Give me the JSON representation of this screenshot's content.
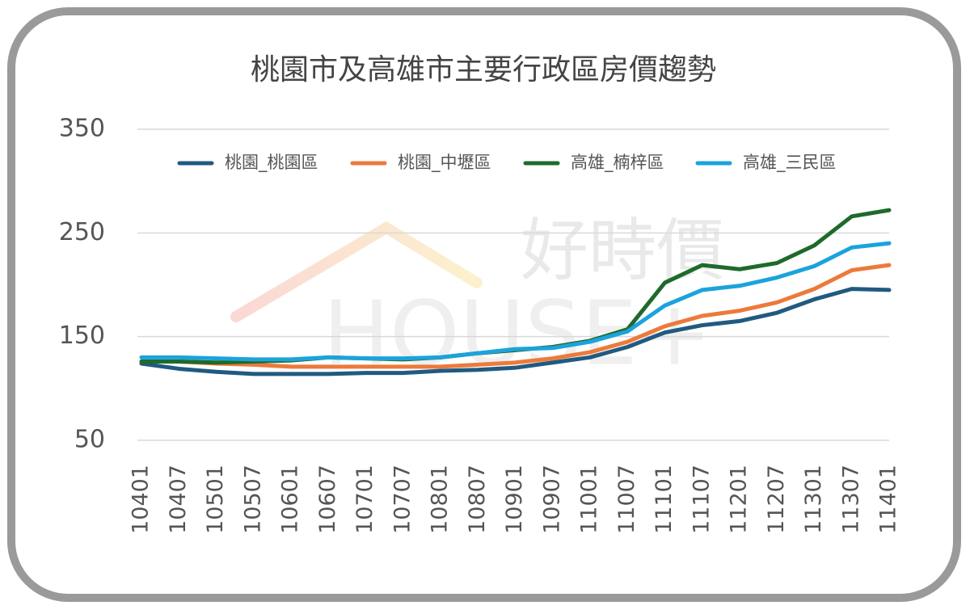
{
  "chart_data": {
    "type": "line",
    "title": "桃園市及高雄市主要行政區房價趨勢",
    "watermark": {
      "text": "好時價",
      "subtext": "HOUSE+"
    },
    "categories": [
      "10401",
      "10407",
      "10501",
      "10507",
      "10601",
      "10607",
      "10701",
      "10707",
      "10801",
      "10807",
      "10901",
      "10907",
      "11001",
      "11007",
      "11101",
      "11107",
      "11201",
      "11207",
      "11301",
      "11307",
      "11401"
    ],
    "series": [
      {
        "name": "桃園_桃園區",
        "color": "#215a80",
        "values": [
          124,
          119,
          116,
          114,
          114,
          114,
          115,
          115,
          117,
          118,
          120,
          125,
          130,
          140,
          154,
          161,
          165,
          173,
          186,
          196,
          195
        ]
      },
      {
        "name": "桃園_中壢區",
        "color": "#ec7a3b",
        "values": [
          126,
          126,
          124,
          123,
          121,
          121,
          121,
          121,
          121,
          123,
          125,
          129,
          135,
          145,
          160,
          170,
          175,
          183,
          196,
          214,
          219
        ]
      },
      {
        "name": "高雄_楠梓區",
        "color": "#1e6a2a",
        "values": [
          126,
          126,
          125,
          126,
          127,
          130,
          129,
          128,
          130,
          134,
          137,
          140,
          146,
          157,
          202,
          219,
          215,
          221,
          238,
          266,
          272
        ]
      },
      {
        "name": "高雄_三民區",
        "color": "#1ba3dc",
        "values": [
          130,
          130,
          129,
          128,
          128,
          130,
          129,
          129,
          130,
          134,
          138,
          139,
          145,
          155,
          180,
          195,
          199,
          207,
          218,
          236,
          240
        ]
      }
    ],
    "ylim": [
      50,
      350
    ],
    "yticks": [
      50,
      150,
      250,
      350
    ],
    "grid": true,
    "legend": "top"
  }
}
